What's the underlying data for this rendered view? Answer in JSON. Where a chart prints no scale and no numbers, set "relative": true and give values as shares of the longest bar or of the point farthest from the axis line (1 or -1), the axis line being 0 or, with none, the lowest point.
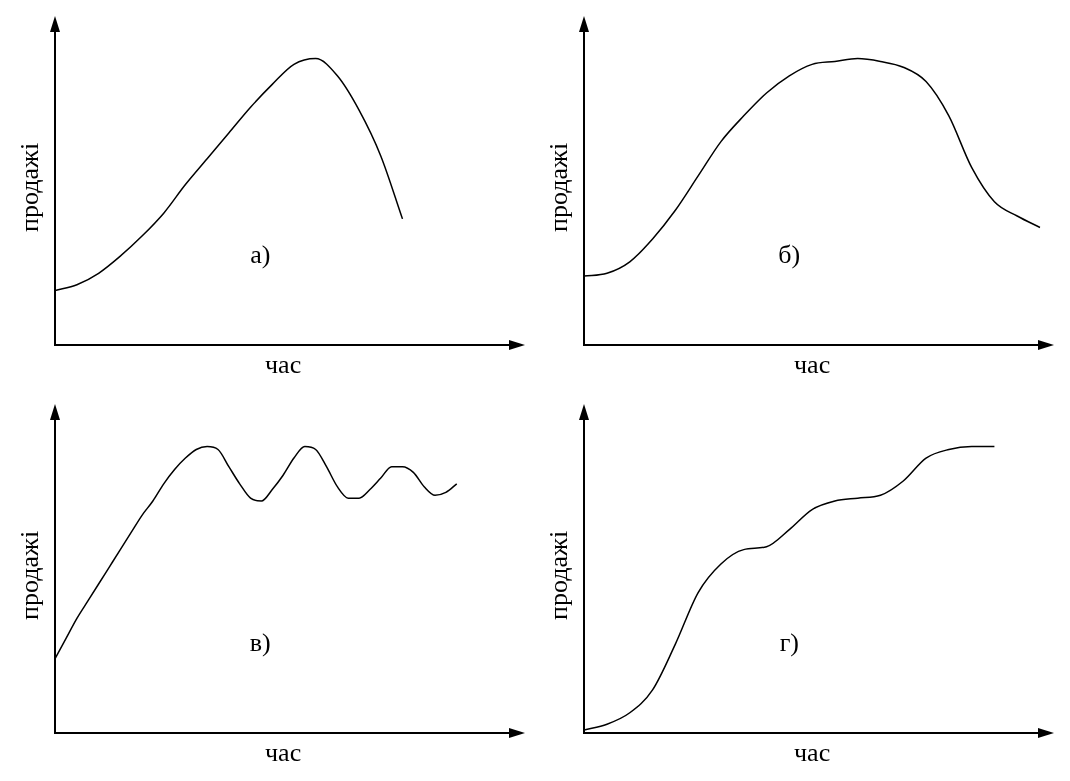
{
  "chart_data": [
    {
      "type": "line",
      "relative": true,
      "xlabel": "час",
      "ylabel": "продажі",
      "annotations": [
        "а)"
      ],
      "grid": false,
      "legend": false,
      "marker": "none",
      "line_style": "solid",
      "tick_labels": false,
      "color": "#000000",
      "categories": [
        null,
        null,
        null,
        null,
        null,
        null,
        null,
        null,
        null,
        null,
        null,
        null,
        null,
        null,
        null,
        null,
        null,
        null,
        null,
        null,
        null,
        null
      ],
      "values": [
        0.19,
        0.21,
        0.25,
        0.31,
        0.38,
        0.46,
        0.56,
        0.65,
        0.74,
        0.83,
        0.91,
        0.98,
        1.0,
        0.94,
        0.82,
        0.66,
        0.44,
        null,
        null,
        null,
        null,
        null
      ]
    },
    {
      "type": "line",
      "relative": true,
      "xlabel": "час",
      "ylabel": "продажі",
      "annotations": [
        "б)"
      ],
      "grid": false,
      "legend": false,
      "marker": "none",
      "line_style": "solid",
      "tick_labels": false,
      "color": "#000000",
      "categories": [
        null,
        null,
        null,
        null,
        null,
        null,
        null,
        null,
        null,
        null,
        null,
        null,
        null,
        null,
        null,
        null,
        null,
        null,
        null,
        null,
        null
      ],
      "values": [
        0.24,
        0.25,
        0.29,
        0.37,
        0.47,
        0.59,
        0.71,
        0.8,
        0.88,
        0.94,
        0.98,
        0.99,
        1.0,
        0.99,
        0.97,
        0.92,
        0.8,
        0.62,
        0.5,
        0.45,
        0.41
      ]
    },
    {
      "type": "line",
      "relative": true,
      "xlabel": "час",
      "ylabel": "продажі",
      "annotations": [
        "в)"
      ],
      "grid": false,
      "legend": false,
      "marker": "none",
      "line_style": "solid",
      "tick_labels": false,
      "color": "#000000",
      "categories": [
        null,
        null,
        null,
        null,
        null,
        null,
        null,
        null,
        null,
        null,
        null,
        null,
        null,
        null,
        null,
        null,
        null,
        null,
        null,
        null,
        null,
        null,
        null,
        null,
        null,
        null,
        null,
        null,
        null,
        null,
        null,
        null,
        null,
        null,
        null,
        null,
        null,
        null,
        null,
        null,
        null,
        null,
        null
      ],
      "values": [
        0.26,
        0.33,
        0.4,
        0.46,
        0.52,
        0.58,
        0.64,
        0.7,
        0.76,
        0.81,
        0.87,
        0.92,
        0.96,
        0.99,
        1.0,
        0.99,
        0.93,
        0.87,
        0.82,
        0.81,
        0.85,
        0.9,
        0.96,
        1.0,
        0.99,
        0.93,
        0.86,
        0.82,
        0.82,
        0.85,
        0.89,
        0.93,
        0.93,
        0.91,
        0.86,
        0.83,
        0.84,
        0.87,
        null,
        null,
        null,
        null,
        null
      ]
    },
    {
      "type": "line",
      "relative": true,
      "xlabel": "час",
      "ylabel": "продажі",
      "annotations": [
        "г)"
      ],
      "grid": false,
      "legend": false,
      "marker": "none",
      "line_style": "solid",
      "tick_labels": false,
      "color": "#000000",
      "categories": [
        null,
        null,
        null,
        null,
        null,
        null,
        null,
        null,
        null,
        null,
        null,
        null,
        null,
        null,
        null,
        null,
        null,
        null,
        null,
        null,
        null
      ],
      "values": [
        0.01,
        0.03,
        0.07,
        0.15,
        0.31,
        0.49,
        0.59,
        0.64,
        0.65,
        0.71,
        0.78,
        0.81,
        0.82,
        0.83,
        0.88,
        0.96,
        0.99,
        1.0,
        1.0,
        null,
        null
      ]
    }
  ]
}
